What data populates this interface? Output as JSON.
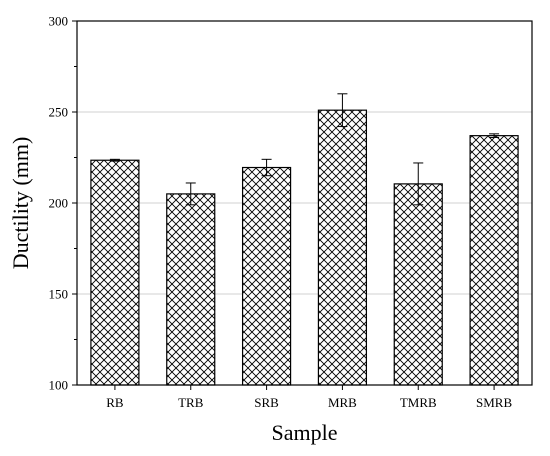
{
  "chart_data": {
    "type": "bar",
    "title": "",
    "xlabel": "Sample",
    "ylabel": "Ductility (mm)",
    "categories": [
      "RB",
      "TRB",
      "SRB",
      "MRB",
      "TMRB",
      "SMRB"
    ],
    "values": [
      223.5,
      205,
      219.5,
      251,
      210.5,
      237
    ],
    "errors": [
      0.5,
      6,
      4.5,
      9,
      11.5,
      1
    ],
    "ylim": [
      100,
      300
    ],
    "yticks": [
      100,
      150,
      200,
      250,
      300
    ],
    "ytick_labels": [
      "100",
      "150",
      "200",
      "250",
      "300"
    ],
    "grid": true,
    "legend": "none",
    "bar_fill": "crosshatch",
    "colors": {
      "bar_stroke": "#000000",
      "grid": "#d0d0d0",
      "axis": "#000000",
      "background": "#ffffff"
    }
  }
}
